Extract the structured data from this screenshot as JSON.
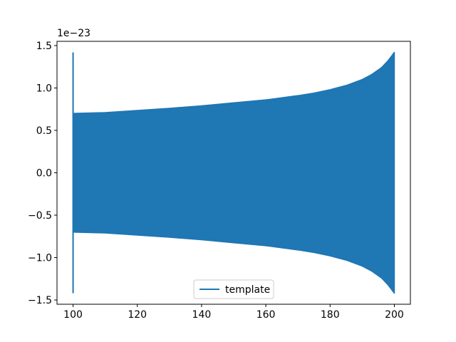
{
  "chart_data": {
    "type": "line",
    "title": "",
    "xlabel": "",
    "ylabel": "",
    "y_offset_text": "1e−23",
    "xlim": [
      95,
      205
    ],
    "ylim": [
      -1.55,
      1.55
    ],
    "x_ticks": [
      100,
      120,
      140,
      160,
      180,
      200
    ],
    "x_tick_labels": [
      "100",
      "120",
      "140",
      "160",
      "180",
      "200"
    ],
    "y_ticks": [
      -1.5,
      -1.0,
      -0.5,
      0.0,
      0.5,
      1.0,
      1.5
    ],
    "y_tick_labels": [
      "−1.5",
      "−1.0",
      "−0.5",
      "0.0",
      "0.5",
      "1.0",
      "1.5"
    ],
    "grid": false,
    "legend_position": "lower-center",
    "series": [
      {
        "name": "template",
        "color": "#1f77b4",
        "style": "filled oscillation envelope",
        "x_start": 100,
        "x_end": 200,
        "initial_spike_amplitude": 1.42,
        "envelope_x": [
          100.3,
          110,
          120,
          130,
          140,
          150,
          160,
          170,
          175,
          180,
          185,
          190,
          193,
          196,
          198,
          199,
          200
        ],
        "envelope_amplitude": [
          0.7,
          0.71,
          0.735,
          0.76,
          0.79,
          0.825,
          0.86,
          0.91,
          0.94,
          0.98,
          1.03,
          1.1,
          1.16,
          1.24,
          1.32,
          1.37,
          1.42
        ]
      }
    ]
  }
}
